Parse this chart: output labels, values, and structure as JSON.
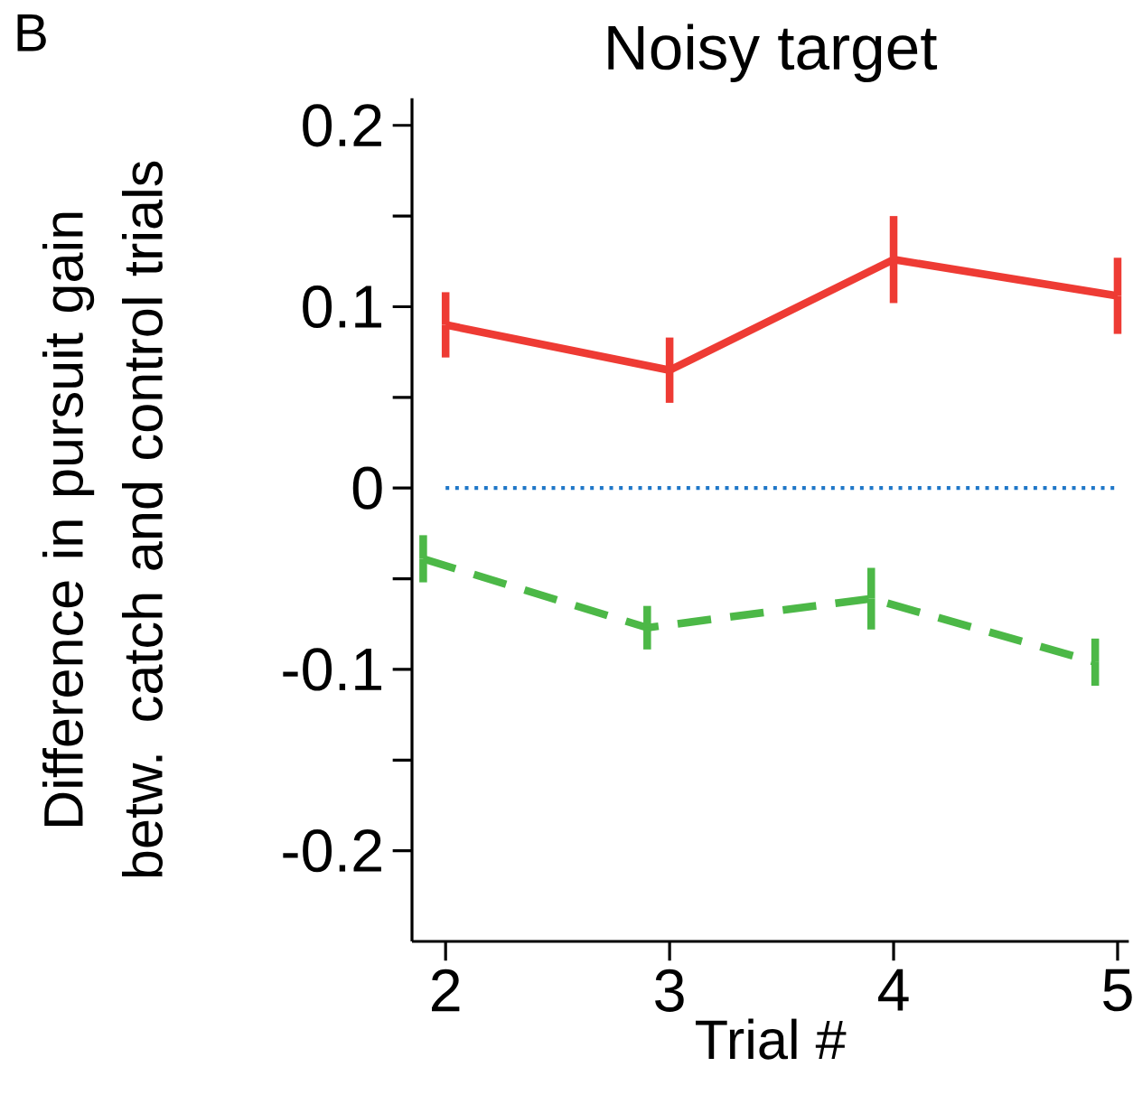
{
  "chart_data": {
    "type": "line",
    "title": "Noisy target",
    "xlabel": "Trial #",
    "ylabel": "Difference in pursuit gain betw. catch and control trials",
    "annotations": [
      "B"
    ],
    "xlim": [
      1.85,
      5.05
    ],
    "xticks": [
      2,
      3,
      4,
      5
    ],
    "ylim": [
      -0.25,
      0.215
    ],
    "yticks": [
      -0.2,
      {
        "value": -0.15,
        "label": null
      },
      -0.1,
      {
        "value": -0.05,
        "label": null
      },
      0,
      {
        "value": 0.05,
        "label": null
      },
      0.1,
      {
        "value": 0.15,
        "label": null
      },
      0.2
    ],
    "series": [
      {
        "color": "#ee3b34",
        "line_style": "solid",
        "x": [
          2,
          3,
          4,
          5
        ],
        "values": [
          0.09,
          0.065,
          0.126,
          0.106
        ],
        "errors": [
          0.018,
          0.018,
          0.024,
          0.021
        ]
      },
      {
        "color": "#4cb847",
        "line_style": "dashed",
        "x": [
          1.9,
          2.9,
          3.9,
          4.9
        ],
        "values": [
          -0.039,
          -0.077,
          -0.061,
          -0.096
        ],
        "errors": [
          0.013,
          0.012,
          0.017,
          0.013
        ]
      }
    ],
    "ref_lines": [
      {
        "axis": "y",
        "value": 0,
        "color": "#1f77c8",
        "line_style": "dotted"
      }
    ],
    "marker": "none",
    "grid": false
  }
}
